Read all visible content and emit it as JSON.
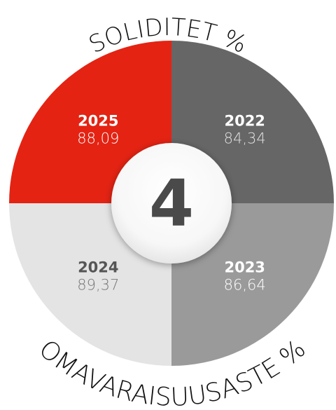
{
  "chart_data": {
    "type": "pie",
    "title": "SOLIDITET %",
    "subtitle": "OMAVARAISUUSASTE %",
    "center_label": "4",
    "segments": [
      {
        "label": "2022",
        "value": 84.34,
        "display_value": "84,34",
        "color": "#666666",
        "text_color": "#ffffff",
        "value_color": "#e0e0e0"
      },
      {
        "label": "2023",
        "value": 86.64,
        "display_value": "86,64",
        "color": "#9a9a9a",
        "text_color": "#ffffff",
        "value_color": "#ffffff"
      },
      {
        "label": "2024",
        "value": 89.37,
        "display_value": "89,37",
        "color": "#e4e4e4",
        "text_color": "#555555",
        "value_color": "#777777"
      },
      {
        "label": "2025",
        "value": 88.09,
        "display_value": "88,09",
        "color": "#e42313",
        "text_color": "#ffffff",
        "value_color": "#ffffff"
      }
    ]
  }
}
